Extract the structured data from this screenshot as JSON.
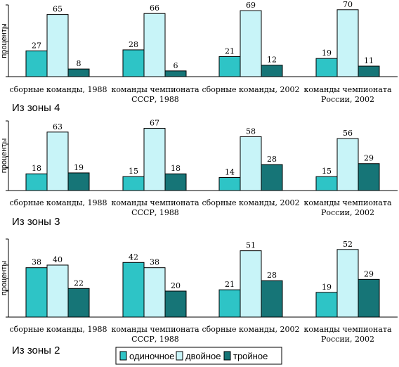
{
  "chart_data": [
    {
      "type": "bar",
      "title": "Из зоны 4",
      "ylabel": "проценты",
      "ylim": [
        0,
        75
      ],
      "grid": false,
      "categories": [
        [
          "сборные команды, 1988"
        ],
        [
          "команды чемпионата",
          "СССР, 1988"
        ],
        [
          "сборные команды, 2002"
        ],
        [
          "команды чемпионата",
          "России, 2002"
        ]
      ],
      "series": [
        {
          "name": "одиночное",
          "values": [
            27,
            28,
            21,
            19
          ]
        },
        {
          "name": "двойное",
          "values": [
            65,
            66,
            69,
            70
          ]
        },
        {
          "name": "тройное",
          "values": [
            8,
            6,
            12,
            11
          ]
        }
      ]
    },
    {
      "type": "bar",
      "title": "Из зоны 3",
      "ylabel": "проценты",
      "ylim": [
        0,
        75
      ],
      "grid": false,
      "categories": [
        [
          "сборные команды, 1988"
        ],
        [
          "команды чемпионата",
          "СССР, 1988"
        ],
        [
          "сборные команды, 2002"
        ],
        [
          "команды чемпионата",
          "России, 2002"
        ]
      ],
      "series": [
        {
          "name": "одиночное",
          "values": [
            18,
            15,
            14,
            15
          ]
        },
        {
          "name": "двойное",
          "values": [
            63,
            67,
            58,
            56
          ]
        },
        {
          "name": "тройное",
          "values": [
            19,
            18,
            28,
            29
          ]
        }
      ]
    },
    {
      "type": "bar",
      "title": "Из зоны 2",
      "ylabel": "проценты",
      "ylim": [
        0,
        60
      ],
      "grid": false,
      "categories": [
        [
          "сборные команды, 1988"
        ],
        [
          "команды чемпионата",
          "СССР, 1988"
        ],
        [
          "сборные команды, 2002"
        ],
        [
          "команды чемпионата",
          "России, 2002"
        ]
      ],
      "series": [
        {
          "name": "одиночное",
          "values": [
            38,
            42,
            21,
            19
          ]
        },
        {
          "name": "двойное",
          "values": [
            40,
            38,
            51,
            52
          ]
        },
        {
          "name": "тройное",
          "values": [
            22,
            20,
            28,
            29
          ]
        }
      ]
    }
  ],
  "legend": {
    "placement": "bottom",
    "items": [
      {
        "label": "одиночное",
        "color": "#2ec4c6"
      },
      {
        "label": "двойное",
        "color": "#c8f4f8"
      },
      {
        "label": "тройное",
        "color": "#167577"
      }
    ]
  },
  "colors": {
    "single": "#2ec4c6",
    "double": "#c8f4f8",
    "triple": "#167577"
  }
}
